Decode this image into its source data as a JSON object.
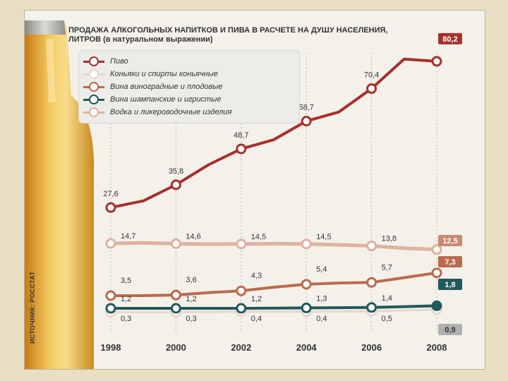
{
  "title_lines": [
    "ПРОДАЖА АЛКОГОЛЬНЫХ НАПИТКОВ И ПИВА В РАСЧЕТЕ НА ДУШУ НАСЕЛЕНИЯ,",
    "ЛИТРОВ (в натуральном выражении)"
  ],
  "source": "ИСТОЧНИК: РОССТАТ",
  "colors": {
    "beer": "#a5312c",
    "cognac": "#e6d6cf",
    "wine": "#bb6a4e",
    "champagne": "#205a5a",
    "vodka": "#deb2a1",
    "grid": "#b8b8b0",
    "axis_text": "#333333"
  },
  "chart_data": {
    "type": "line",
    "title": "ПРОДАЖА АЛКОГОЛЬНЫХ НАПИТКОВ И ПИВА В РАСЧЕТЕ НА ДУШУ НАСЕЛЕНИЯ, ЛИТРОВ (в натуральном выражении)",
    "x_ticks": [
      "1998",
      "2000",
      "2002",
      "2004",
      "2006",
      "2008"
    ],
    "grid": "vertical dotted at labeled years",
    "legend_position": "top-left",
    "series": [
      {
        "name": "Пиво",
        "key": "beer",
        "x": [
          1998,
          1999,
          2000,
          2001,
          2002,
          2003,
          2004,
          2005,
          2006,
          2007,
          2008
        ],
        "y": [
          27.6,
          30,
          35.8,
          43,
          48.7,
          52,
          58.7,
          62,
          70.4,
          81,
          80.2
        ],
        "labels": [
          "27,6",
          null,
          "35,8",
          null,
          "48,7",
          null,
          "58,7",
          null,
          "70,4",
          null,
          "80,2"
        ]
      },
      {
        "name": "Коньяки и спирты коньячные",
        "key": "cognac",
        "x": [
          1998,
          1999,
          2000,
          2001,
          2002,
          2003,
          2004,
          2005,
          2006,
          2007,
          2008
        ],
        "y": [
          0.3,
          0.3,
          0.3,
          0.35,
          0.4,
          0.4,
          0.4,
          0.45,
          0.5,
          0.7,
          0.9
        ],
        "labels": [
          "0,3",
          null,
          "0,3",
          null,
          "0,4",
          null,
          "0,4",
          null,
          "0,5",
          null,
          "0,9"
        ]
      },
      {
        "name": "Вина виноградные и плодовые",
        "key": "wine",
        "x": [
          1998,
          1999,
          2000,
          2001,
          2002,
          2003,
          2004,
          2005,
          2006,
          2007,
          2008
        ],
        "y": [
          3.5,
          3.5,
          3.6,
          4.0,
          4.3,
          4.9,
          5.4,
          5.6,
          5.7,
          6.5,
          7.3
        ],
        "labels": [
          "3,5",
          null,
          "3,6",
          null,
          "4,3",
          null,
          "5,4",
          null,
          "5,7",
          null,
          "7,3"
        ]
      },
      {
        "name": "Вина шампанские и игристые",
        "key": "champagne",
        "x": [
          1998,
          1999,
          2000,
          2001,
          2002,
          2003,
          2004,
          2005,
          2006,
          2007,
          2008
        ],
        "y": [
          1.2,
          1.2,
          1.2,
          1.2,
          1.2,
          1.25,
          1.3,
          1.35,
          1.4,
          1.6,
          1.8
        ],
        "labels": [
          "1,2",
          null,
          "1,2",
          null,
          "1,2",
          null,
          "1,3",
          null,
          "1,4",
          null,
          "1,8"
        ]
      },
      {
        "name": "Водка и ликероводочные изделия",
        "key": "vodka",
        "x": [
          1998,
          1999,
          2000,
          2001,
          2002,
          2003,
          2004,
          2005,
          2006,
          2007,
          2008
        ],
        "y": [
          14.7,
          14.9,
          14.6,
          14.4,
          14.5,
          14.6,
          14.5,
          14.2,
          13.8,
          13.0,
          12.5
        ],
        "labels": [
          "14,7",
          null,
          "14,6",
          null,
          "14,5",
          null,
          "14,5",
          null,
          "13,8",
          null,
          "12,5"
        ]
      }
    ]
  }
}
